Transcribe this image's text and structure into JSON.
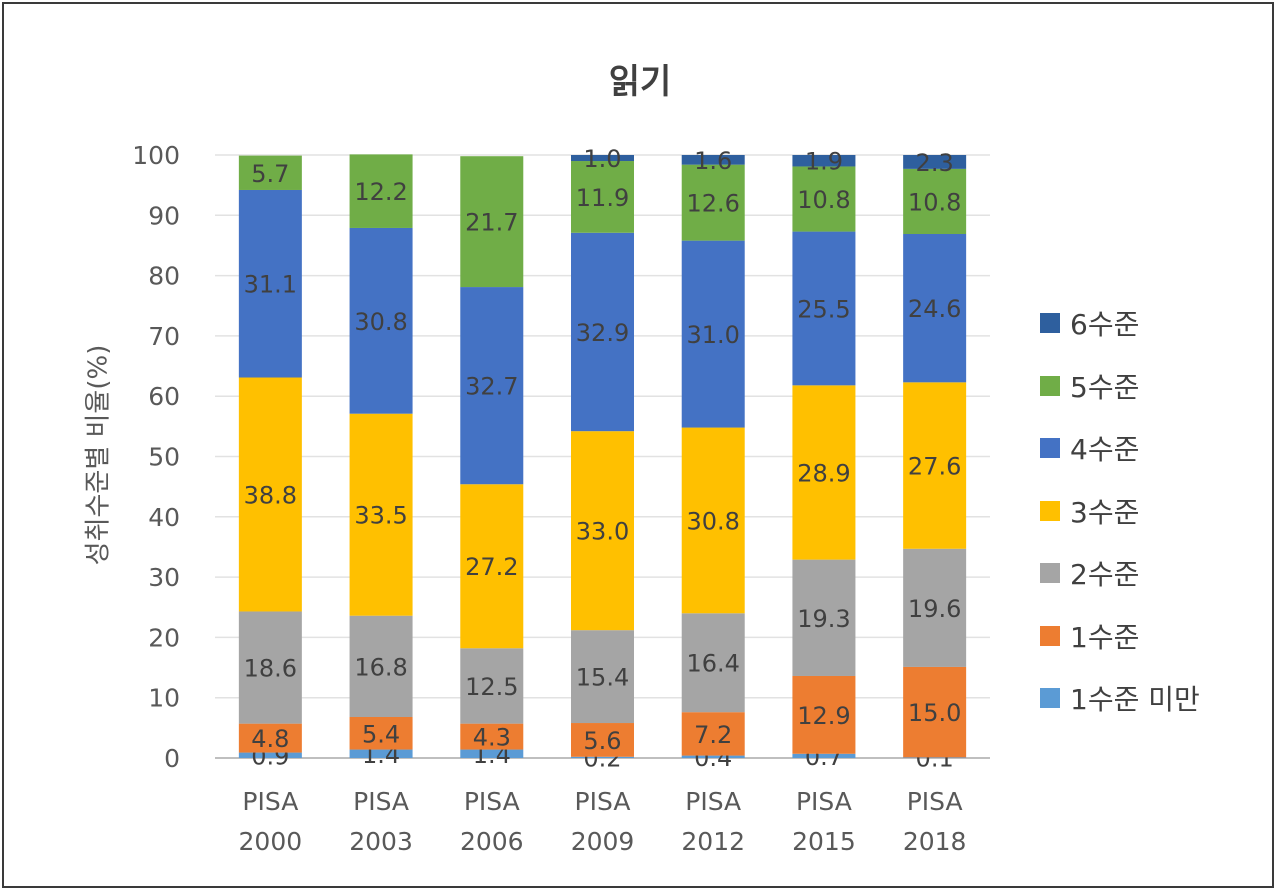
{
  "chart_data": {
    "type": "bar",
    "stacked": true,
    "title": "읽기",
    "ylabel": "성취수준별 비율(%)",
    "xlabel": "",
    "ylim": [
      0,
      100
    ],
    "yticks": [
      0,
      10,
      20,
      30,
      40,
      50,
      60,
      70,
      80,
      90,
      100
    ],
    "grid": true,
    "legend_position": "right",
    "categories": [
      [
        "PISA",
        "2000"
      ],
      [
        "PISA",
        "2003"
      ],
      [
        "PISA",
        "2006"
      ],
      [
        "PISA",
        "2009"
      ],
      [
        "PISA",
        "2012"
      ],
      [
        "PISA",
        "2015"
      ],
      [
        "PISA",
        "2018"
      ]
    ],
    "series": [
      {
        "name": "1수준 미만",
        "color": "#5b9bd5",
        "values": [
          0.9,
          1.4,
          1.4,
          0.2,
          0.4,
          0.7,
          0.1
        ]
      },
      {
        "name": "1수준",
        "color": "#ed7d31",
        "values": [
          4.8,
          5.4,
          4.3,
          5.6,
          7.2,
          12.9,
          15.0
        ]
      },
      {
        "name": "2수준",
        "color": "#a5a5a5",
        "values": [
          18.6,
          16.8,
          12.5,
          15.4,
          16.4,
          19.3,
          19.6
        ]
      },
      {
        "name": "3수준",
        "color": "#ffc000",
        "values": [
          38.8,
          33.5,
          27.2,
          33.0,
          30.8,
          28.9,
          27.6
        ]
      },
      {
        "name": "4수준",
        "color": "#4472c4",
        "values": [
          31.1,
          30.8,
          32.7,
          32.9,
          31.0,
          25.5,
          24.6
        ]
      },
      {
        "name": "5수준",
        "color": "#70ad47",
        "values": [
          5.7,
          12.2,
          21.7,
          11.9,
          12.6,
          10.8,
          10.8
        ]
      },
      {
        "name": "6수준",
        "color": "#2e5f9e",
        "values": [
          null,
          null,
          null,
          1.0,
          1.6,
          1.9,
          2.3
        ]
      }
    ]
  }
}
